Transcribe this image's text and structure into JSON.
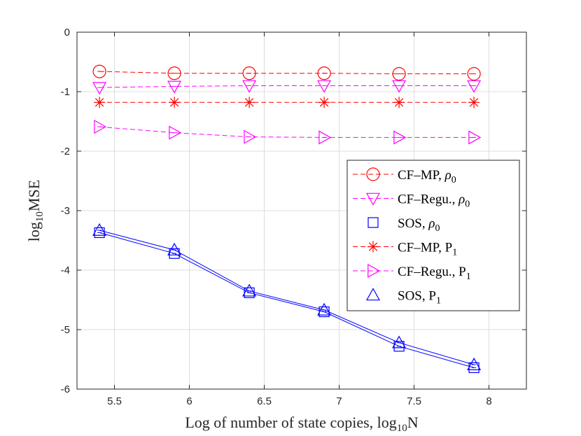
{
  "chart_data": {
    "type": "line",
    "xlabel": {
      "main": "Log of number of state copies, log",
      "sub": "10",
      "tail": "N"
    },
    "ylabel": {
      "main": "log",
      "sub": "10",
      "tail": "MSE"
    },
    "xlim": [
      5.25,
      8.25
    ],
    "ylim": [
      -6,
      0
    ],
    "xticks": [
      5.5,
      6,
      6.5,
      7,
      7.5,
      8
    ],
    "yticks": [
      0,
      -1,
      -2,
      -3,
      -4,
      -5,
      -6
    ],
    "xtick_labels": [
      "5.5",
      "6",
      "6.5",
      "7",
      "7.5",
      "8"
    ],
    "ytick_labels": [
      "0",
      "-1",
      "-2",
      "-3",
      "-4",
      "-5",
      "-6"
    ],
    "grid": true,
    "legend_position": "right",
    "x": [
      5.4,
      5.9,
      6.4,
      6.9,
      7.4,
      7.9
    ],
    "series": [
      {
        "name": "CF–MP, ",
        "sym": "ρ",
        "sub": "0",
        "color": "#ff0000",
        "marker": "circle",
        "dashed": true,
        "values": [
          -0.66,
          -0.69,
          -0.69,
          -0.69,
          -0.7,
          -0.7
        ]
      },
      {
        "name": "CF–Regu., ",
        "sym": "ρ",
        "sub": "0",
        "color": "#ff00ff",
        "marker": "triangle-down",
        "dashed": true,
        "values": [
          -0.93,
          -0.91,
          -0.9,
          -0.9,
          -0.9,
          -0.9
        ]
      },
      {
        "name": "SOS, ",
        "sym": "ρ",
        "sub": "0",
        "color": "#0000ff",
        "marker": "square",
        "dashed": false,
        "values": [
          -3.37,
          -3.72,
          -4.38,
          -4.7,
          -5.28,
          -5.64
        ]
      },
      {
        "name": "CF–MP, ",
        "sym": "P",
        "sub": "1",
        "color": "#ff0000",
        "marker": "asterisk",
        "dashed": true,
        "values": [
          -1.18,
          -1.18,
          -1.18,
          -1.18,
          -1.18,
          -1.18
        ]
      },
      {
        "name": "CF–Regu., ",
        "sym": "P",
        "sub": "1",
        "color": "#ff00ff",
        "marker": "triangle-right",
        "dashed": true,
        "values": [
          -1.59,
          -1.69,
          -1.76,
          -1.77,
          -1.77,
          -1.77
        ]
      },
      {
        "name": "SOS, ",
        "sym": "P",
        "sub": "1",
        "color": "#0000ff",
        "marker": "triangle-up",
        "dashed": false,
        "values": [
          -3.33,
          -3.66,
          -4.35,
          -4.67,
          -5.22,
          -5.59
        ]
      }
    ]
  }
}
